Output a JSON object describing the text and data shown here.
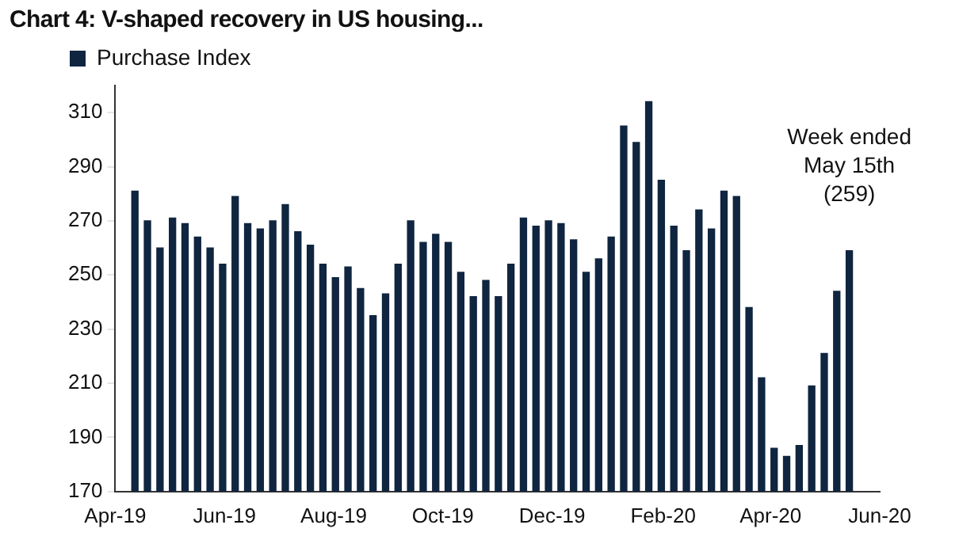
{
  "chart_data": {
    "type": "bar",
    "title": "Chart 4: V-shaped recovery in US housing...",
    "x": [
      "2019-04-12",
      "2019-04-19",
      "2019-04-26",
      "2019-05-03",
      "2019-05-10",
      "2019-05-17",
      "2019-05-24",
      "2019-05-31",
      "2019-06-07",
      "2019-06-14",
      "2019-06-21",
      "2019-06-28",
      "2019-07-05",
      "2019-07-12",
      "2019-07-19",
      "2019-07-26",
      "2019-08-02",
      "2019-08-09",
      "2019-08-16",
      "2019-08-23",
      "2019-08-30",
      "2019-09-06",
      "2019-09-13",
      "2019-09-20",
      "2019-09-27",
      "2019-10-04",
      "2019-10-11",
      "2019-10-18",
      "2019-10-25",
      "2019-11-01",
      "2019-11-08",
      "2019-11-15",
      "2019-11-22",
      "2019-11-29",
      "2019-12-06",
      "2019-12-13",
      "2019-12-20",
      "2019-12-27",
      "2020-01-03",
      "2020-01-10",
      "2020-01-17",
      "2020-01-24",
      "2020-01-31",
      "2020-02-07",
      "2020-02-14",
      "2020-02-21",
      "2020-02-28",
      "2020-03-06",
      "2020-03-13",
      "2020-03-20",
      "2020-03-27",
      "2020-04-03",
      "2020-04-10",
      "2020-04-17",
      "2020-04-24",
      "2020-05-01",
      "2020-05-08",
      "2020-05-15"
    ],
    "series": [
      {
        "name": "Purchase Index",
        "color": "#0f2540",
        "values": [
          281,
          270,
          260,
          271,
          269,
          264,
          260,
          254,
          279,
          269,
          267,
          270,
          276,
          266,
          261,
          254,
          249,
          253,
          245,
          235,
          243,
          254,
          270,
          262,
          265,
          262,
          251,
          242,
          248,
          242,
          254,
          271,
          268,
          270,
          269,
          263,
          251,
          256,
          264,
          305,
          299,
          314,
          285,
          268,
          259,
          274,
          267,
          281,
          279,
          238,
          212,
          186,
          183,
          187,
          209,
          221,
          244,
          259
        ]
      }
    ],
    "xlim": [
      "2019-04-01",
      "2020-06-01"
    ],
    "xticks": [
      {
        "value": "2019-04-01",
        "label": "Apr-19"
      },
      {
        "value": "2019-06-01",
        "label": "Jun-19"
      },
      {
        "value": "2019-08-01",
        "label": "Aug-19"
      },
      {
        "value": "2019-10-01",
        "label": "Oct-19"
      },
      {
        "value": "2019-12-01",
        "label": "Dec-19"
      },
      {
        "value": "2020-02-01",
        "label": "Feb-20"
      },
      {
        "value": "2020-04-01",
        "label": "Apr-20"
      },
      {
        "value": "2020-06-01",
        "label": "Jun-20"
      }
    ],
    "ylim": [
      170,
      320
    ],
    "yticks": [
      170,
      190,
      210,
      230,
      250,
      270,
      290,
      310
    ],
    "legend": "top left",
    "annotations": [
      {
        "text": "Week ended\nMay 15th\n(259)",
        "x": "2020-05-15",
        "y": 259
      }
    ]
  }
}
